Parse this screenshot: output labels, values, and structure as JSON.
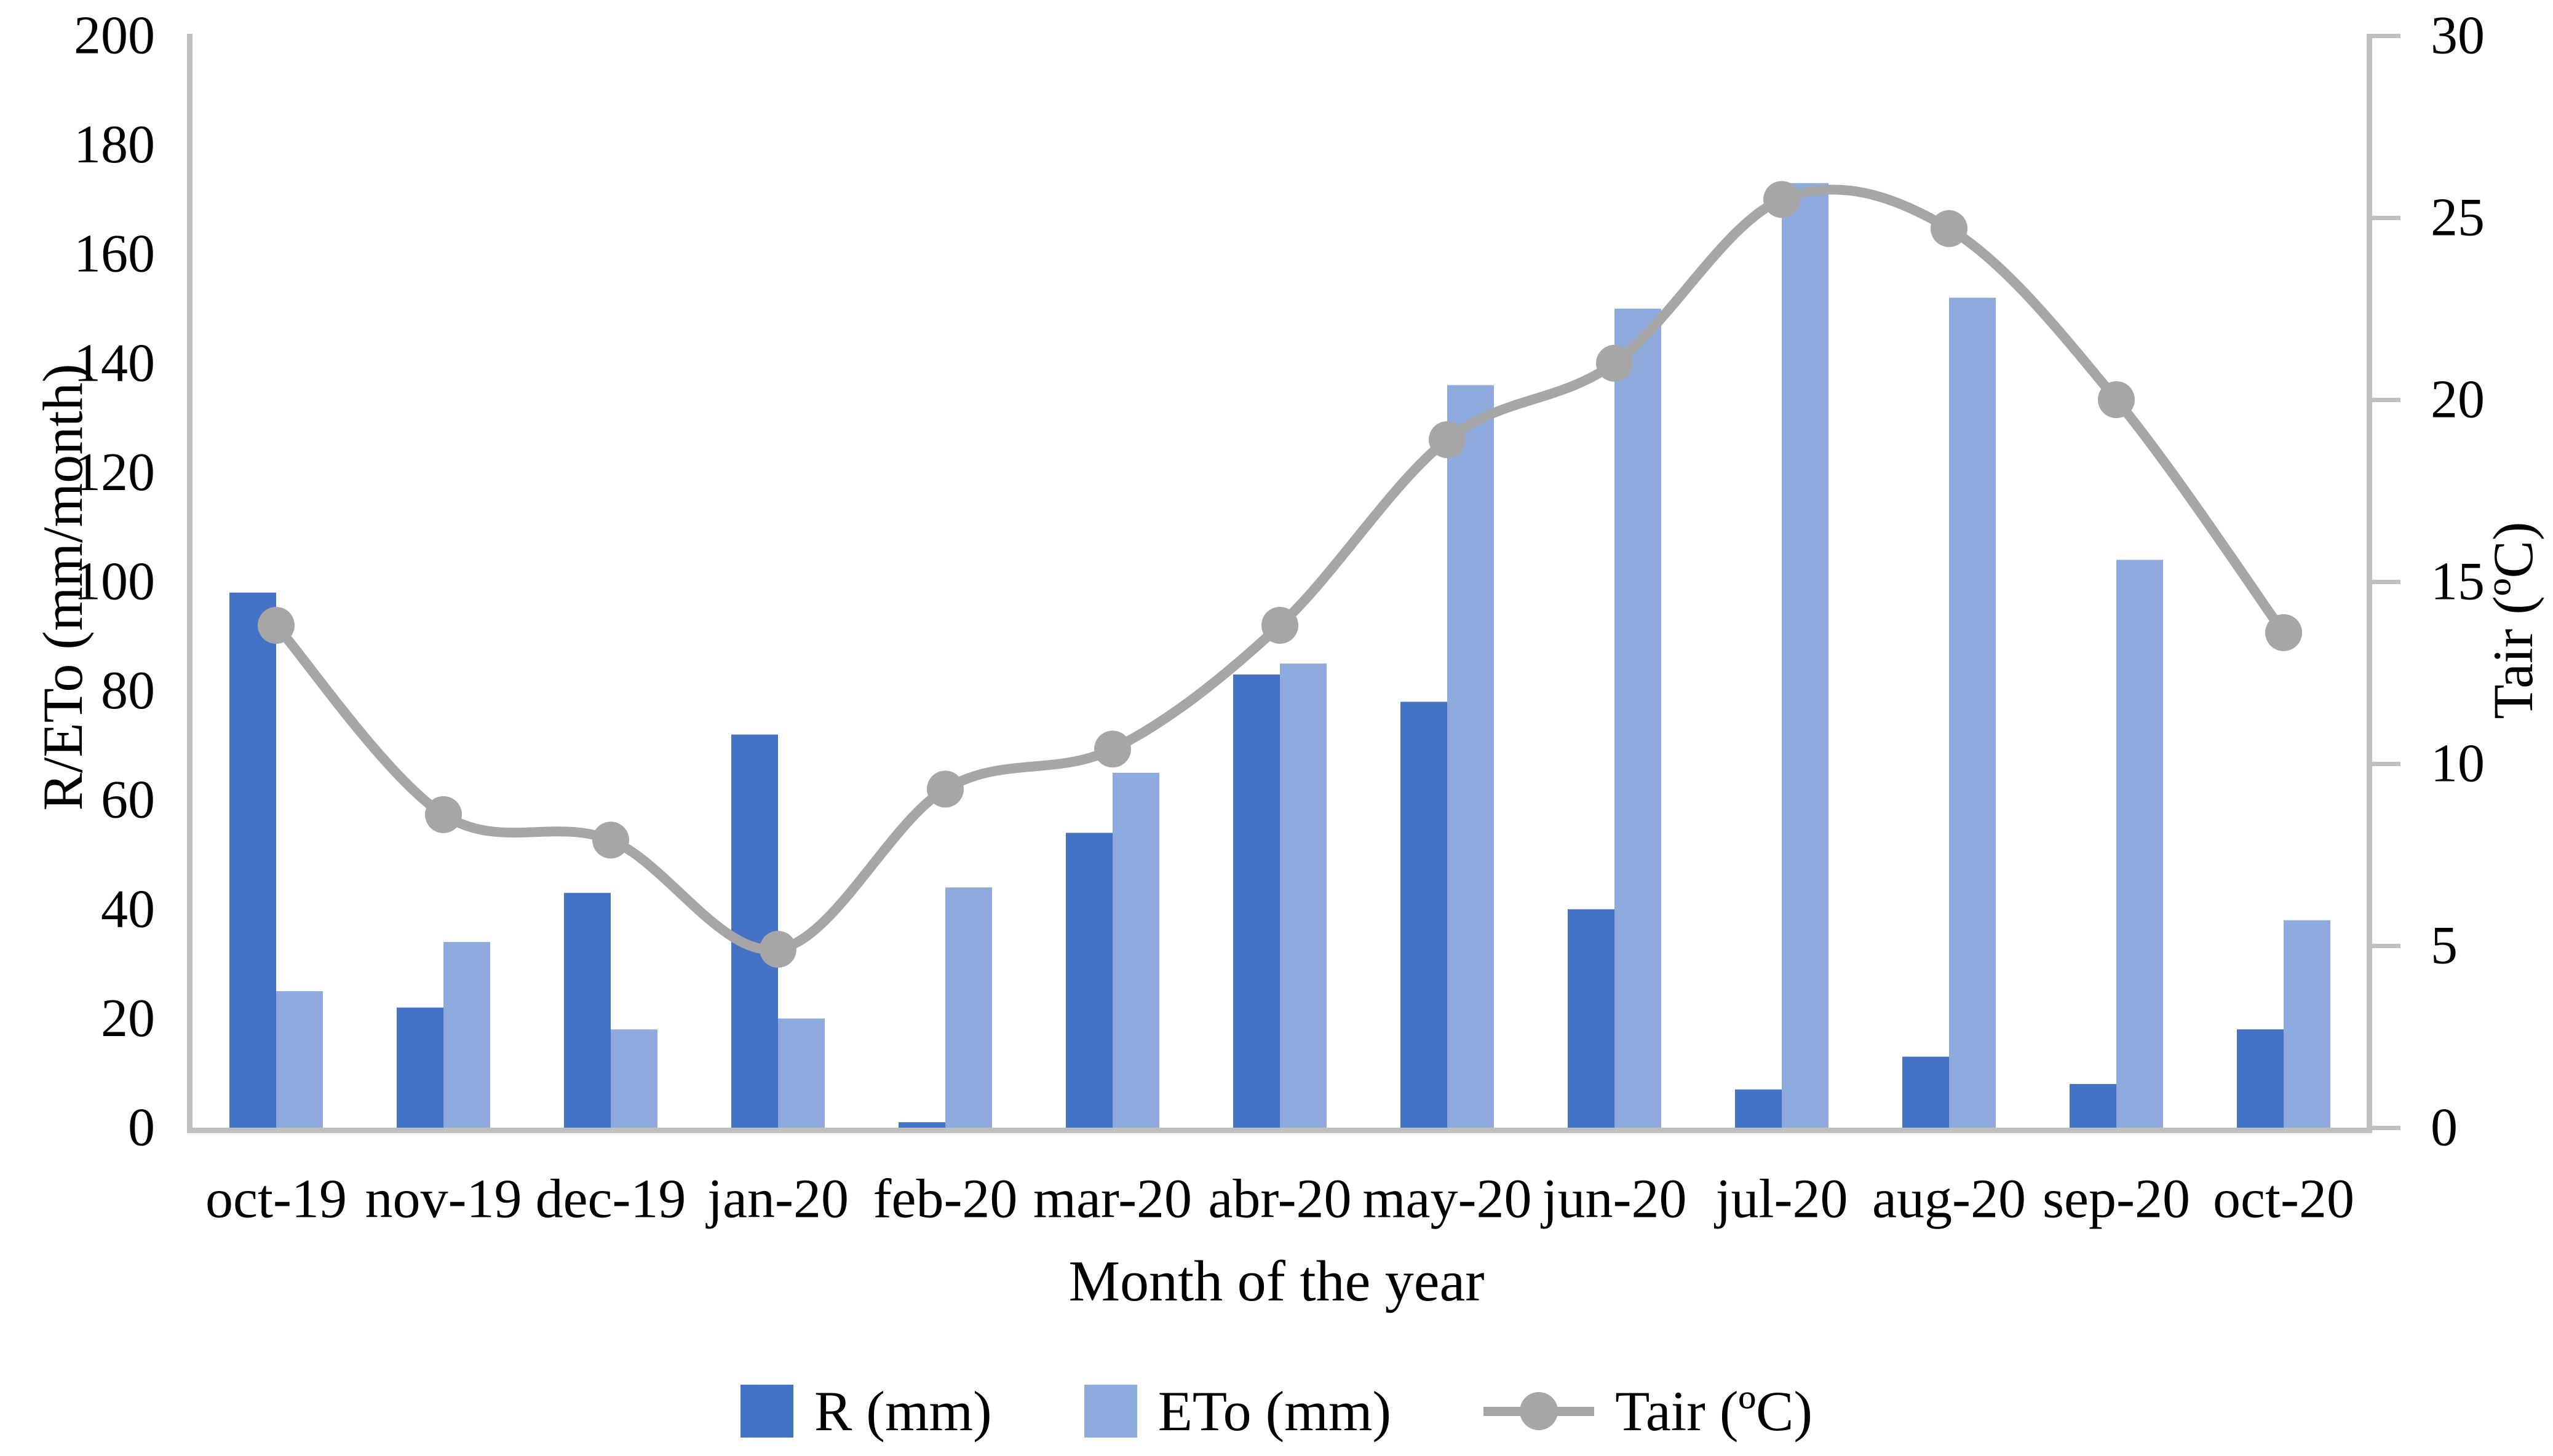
{
  "figure": {
    "left_axis_title": "R/ETo (mm/month)",
    "right_axis_title": "Tair (ºC)",
    "x_axis_title": "Month of the year",
    "left_tick_labels": [
      "0",
      "20",
      "40",
      "60",
      "80",
      "100",
      "120",
      "140",
      "160",
      "180",
      "200"
    ],
    "right_tick_labels": [
      "0",
      "5",
      "10",
      "15",
      "20",
      "25",
      "30"
    ]
  },
  "legend": {
    "r_label": "R (mm)",
    "eto_label": "ETo (mm)",
    "tair_label": "Tair (ºC)"
  },
  "colors": {
    "r_bar": "#4472C4",
    "eto_bar": "#8FAADC",
    "tair_line": "#A6A6A6",
    "axis_line": "#BFBFBF",
    "text": "#000000"
  },
  "chart_data": {
    "type": "combo-bar-line",
    "title": "",
    "xlabel": "Month of the year",
    "grid": false,
    "legend_position": "bottom",
    "categories": [
      "oct-19",
      "nov-19",
      "dec-19",
      "jan-20",
      "feb-20",
      "mar-20",
      "abr-20",
      "may-20",
      "jun-20",
      "jul-20",
      "aug-20",
      "sep-20",
      "oct-20"
    ],
    "left_axis": {
      "label": "R/ETo (mm/month)",
      "min": 0,
      "max": 200,
      "tick_step": 20
    },
    "right_axis": {
      "label": "Tair (ºC)",
      "min": 0,
      "max": 30,
      "tick_step": 5
    },
    "series": [
      {
        "name": "R (mm)",
        "type": "bar",
        "axis": "left",
        "color": "#4472C4",
        "values": [
          98,
          22,
          43,
          72,
          1,
          54,
          83,
          78,
          40,
          7,
          13,
          8,
          18
        ]
      },
      {
        "name": "ETo (mm)",
        "type": "bar",
        "axis": "left",
        "color": "#8FAADC",
        "values": [
          25,
          34,
          18,
          20,
          44,
          65,
          85,
          136,
          150,
          173,
          152,
          104,
          38
        ]
      },
      {
        "name": "Tair (ºC)",
        "type": "line",
        "axis": "right",
        "color": "#A6A6A6",
        "marker": "circle",
        "smooth": true,
        "values": [
          13.8,
          8.6,
          7.9,
          4.9,
          9.3,
          10.4,
          13.8,
          18.9,
          21.0,
          25.5,
          24.7,
          20.0,
          13.6
        ]
      }
    ]
  }
}
